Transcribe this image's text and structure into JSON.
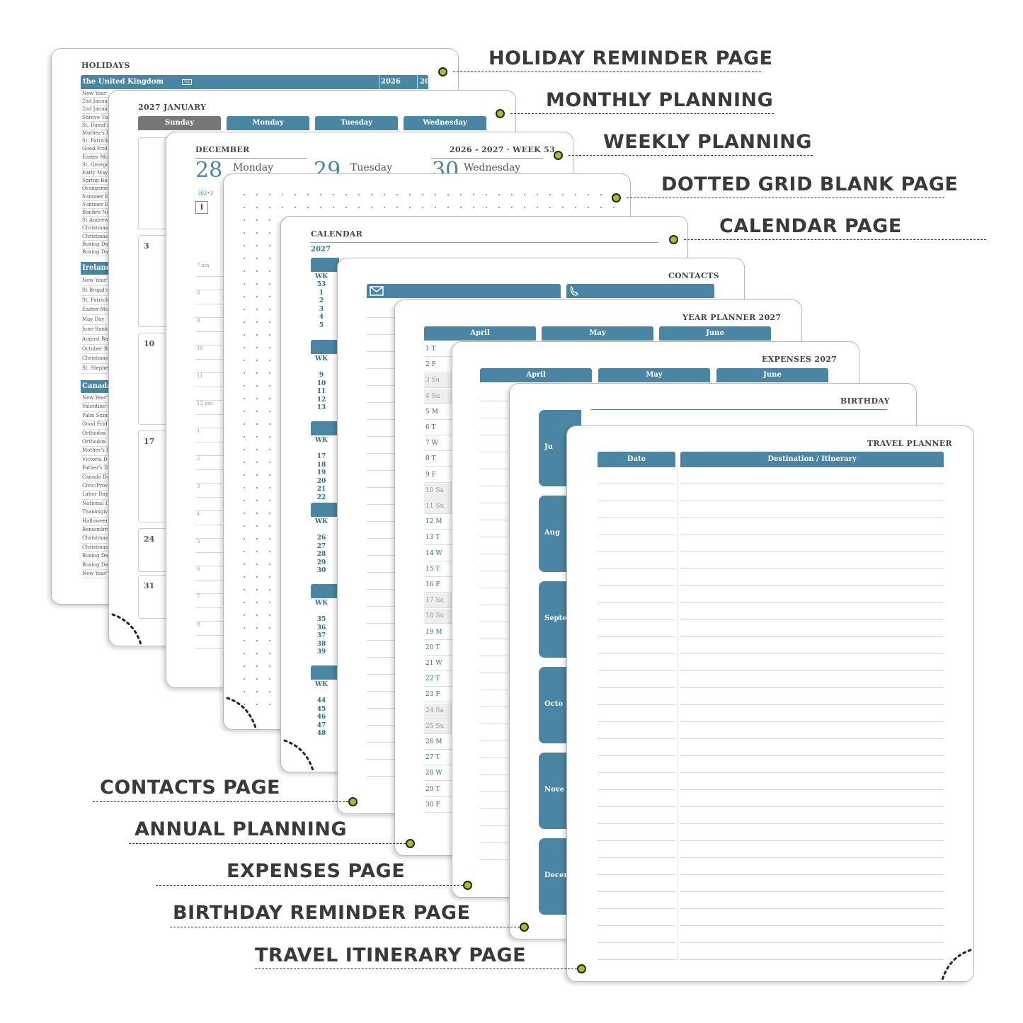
{
  "labels": {
    "holiday": "HOLIDAY REMINDER PAGE",
    "monthly": "MONTHLY PLANNING",
    "weekly": "WEEKLY PLANNING",
    "dotted": "DOTTED GRID BLANK PAGE",
    "calendar": "CALENDAR PAGE",
    "contacts": "CONTACTS PAGE",
    "annual": "ANNUAL PLANNING",
    "expenses": "EXPENSES PAGE",
    "birthday": "BIRTHDAY REMINDER PAGE",
    "travel": "TRAVEL ITINERARY PAGE"
  },
  "holidays": {
    "title": "HOLIDAYS",
    "country1": "the United Kingdom",
    "country1_badge": "UK",
    "year1": "2026",
    "year2": "2027",
    "uk_items": [
      "New Year's D",
      "2nd Januar",
      "2nd Januar",
      "Shrove Tue",
      "St. David's",
      "Mother's D",
      "St. Patrick'",
      "Good Frida",
      "Easter Mon",
      "St. George'",
      "Early May I",
      "Spring Ban",
      "Orangemen",
      "Summer Ba",
      "Summer Ba",
      "Bonfire Nig",
      "St Andrew'",
      "Christmas",
      "Christmas",
      "Boxing Day",
      "Boxing Day"
    ],
    "country2": "Ireland",
    "ie_items": [
      "New Year's",
      "St Brigid's I",
      "St. Patrick's",
      "Easter Mon",
      "May Day",
      "June Bank",
      "August Ban",
      "October Ba",
      "Christmas",
      "St. Stephen"
    ],
    "country3": "Canada",
    "ca_items": [
      "New Year's",
      "Valentine's",
      "Palm Sund",
      "Good Frida",
      "Orthodox E",
      "Orthodox E",
      "Mother's D",
      "Victoria Da",
      "Father's Da",
      "Canada Day",
      "Civic/Provi",
      "Labor Day",
      "National D",
      "Thanksgivi",
      "Halloween",
      "Remembra",
      "Christmas",
      "Christmas",
      "Boxing Day",
      "Boxing Day",
      "New Year's"
    ]
  },
  "monthly": {
    "title": "2027 JANUARY",
    "days": [
      "Sunday",
      "Monday",
      "Tuesday",
      "Wednesday"
    ],
    "dates": [
      "3",
      "10",
      "17",
      "24",
      "31"
    ]
  },
  "weekly": {
    "month": "DECEMBER",
    "week": "2026 - 2027 · WEEK 53",
    "d1_num": "28",
    "d1_name": "Monday",
    "d2_num": "29",
    "d2_name": "Tuesday",
    "d3_num": "30",
    "d3_name": "Wednesday",
    "small": "362•3",
    "info": "i",
    "hours": [
      "7 am",
      "8",
      "9",
      "10",
      "11",
      "12 pm",
      "1",
      "2",
      "3",
      "4",
      "5",
      "6",
      "7",
      "8"
    ]
  },
  "calendar": {
    "title": "CALENDAR",
    "year": "2027",
    "year2": "2027",
    "wk": "WK",
    "blocks": [
      [
        "53",
        "1",
        "2",
        "3",
        "4",
        "5"
      ],
      [
        "9",
        "10",
        "11",
        "12",
        "13"
      ],
      [
        "17",
        "18",
        "19",
        "20",
        "21",
        "22"
      ],
      [
        "26",
        "27",
        "28",
        "29",
        "30"
      ],
      [
        "35",
        "36",
        "37",
        "38",
        "39"
      ],
      [
        "44",
        "45",
        "46",
        "47",
        "48"
      ]
    ]
  },
  "contacts": {
    "title": "CONTACTS"
  },
  "year_planner": {
    "title": "YEAR PLANNER 2027",
    "months": [
      "April",
      "May",
      "June"
    ],
    "days": [
      "1  T",
      "2  F",
      "3  Sa",
      "4  Su",
      "5  M",
      "6  T",
      "7  W",
      "8  T",
      "9  F",
      "10 Sa",
      "11 Su",
      "12 M",
      "13 T",
      "14 W",
      "15 T",
      "16 F",
      "17 Sa",
      "18 Su",
      "19 M",
      "20 T",
      "21 W",
      "22 T",
      "23 F",
      "24 Sa",
      "25 Su",
      "26 M",
      "27 T",
      "28 W",
      "29 T",
      "30 F"
    ]
  },
  "expenses": {
    "title": "EXPENSES 2027",
    "months": [
      "April",
      "May",
      "June"
    ]
  },
  "birthday": {
    "title": "BIRTHDAY",
    "months": [
      "Ju",
      "Aug",
      "Septe",
      "Octo",
      "Nove",
      "Decer"
    ]
  },
  "travel": {
    "title": "TRAVEL PLANNER",
    "col1": "Date",
    "col2": "Destination / Itinerary"
  },
  "colors": {
    "teal": "#4a86a3",
    "accent_dot": "#9ec41f",
    "gray_tab": "#777777"
  }
}
